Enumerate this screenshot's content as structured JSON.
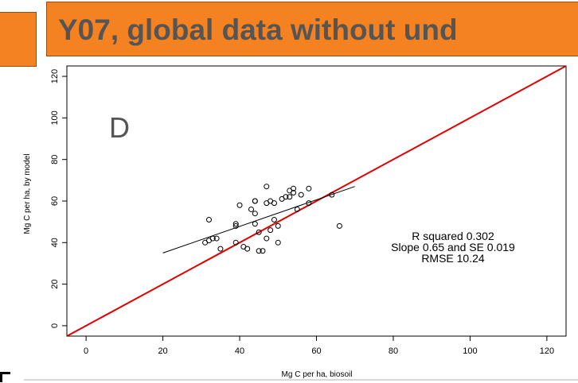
{
  "header": {
    "title": "Y07, global data without und"
  },
  "panel_letter": "D",
  "stats": {
    "r_squared": "R squared 0.302",
    "slope": "Slope  0.65  and SE  0.019",
    "rmse": "RMSE 10.24"
  },
  "colors": {
    "header_bg": "#f58220",
    "header_text": "#555555",
    "identity_line": "#e00000",
    "regression_line": "#000000"
  },
  "chart_data": {
    "type": "scatter",
    "xlabel": "Mg C per ha, biosoil",
    "ylabel": "Mg C per ha, by model",
    "xlim": [
      -5,
      125
    ],
    "ylim": [
      -5,
      125
    ],
    "x_ticks": [
      0,
      20,
      40,
      60,
      80,
      100,
      120
    ],
    "y_ticks": [
      0,
      20,
      40,
      60,
      80,
      100,
      120
    ],
    "x_tick_labels": [
      "0",
      "20",
      "40",
      "60",
      "80",
      "100",
      "120"
    ],
    "y_tick_labels": [
      "0",
      "20",
      "40",
      "60",
      "80",
      "100",
      "120"
    ],
    "points": [
      [
        31,
        40
      ],
      [
        32,
        51
      ],
      [
        32,
        41
      ],
      [
        33,
        42
      ],
      [
        34,
        42
      ],
      [
        35,
        37
      ],
      [
        39,
        48
      ],
      [
        39,
        49
      ],
      [
        39,
        40
      ],
      [
        40,
        58
      ],
      [
        41,
        38
      ],
      [
        42,
        37
      ],
      [
        43,
        56
      ],
      [
        44,
        60
      ],
      [
        44,
        49
      ],
      [
        44,
        54
      ],
      [
        44,
        60
      ],
      [
        45,
        45
      ],
      [
        45,
        36
      ],
      [
        46,
        36
      ],
      [
        47,
        59
      ],
      [
        47,
        42
      ],
      [
        47,
        67
      ],
      [
        48,
        46
      ],
      [
        48,
        60
      ],
      [
        49,
        59
      ],
      [
        49,
        51
      ],
      [
        50,
        40
      ],
      [
        50,
        48
      ],
      [
        51,
        61
      ],
      [
        52,
        62
      ],
      [
        53,
        62
      ],
      [
        53,
        65
      ],
      [
        54,
        64
      ],
      [
        54,
        66
      ],
      [
        55,
        56
      ],
      [
        56,
        63
      ],
      [
        58,
        66
      ],
      [
        58,
        59
      ],
      [
        64,
        63
      ],
      [
        66,
        48
      ]
    ],
    "identity_line": {
      "from": [
        -5,
        -5
      ],
      "to": [
        125,
        125
      ]
    },
    "regression_line": {
      "from": [
        20,
        35
      ],
      "to": [
        70,
        67
      ]
    },
    "grid": false
  }
}
